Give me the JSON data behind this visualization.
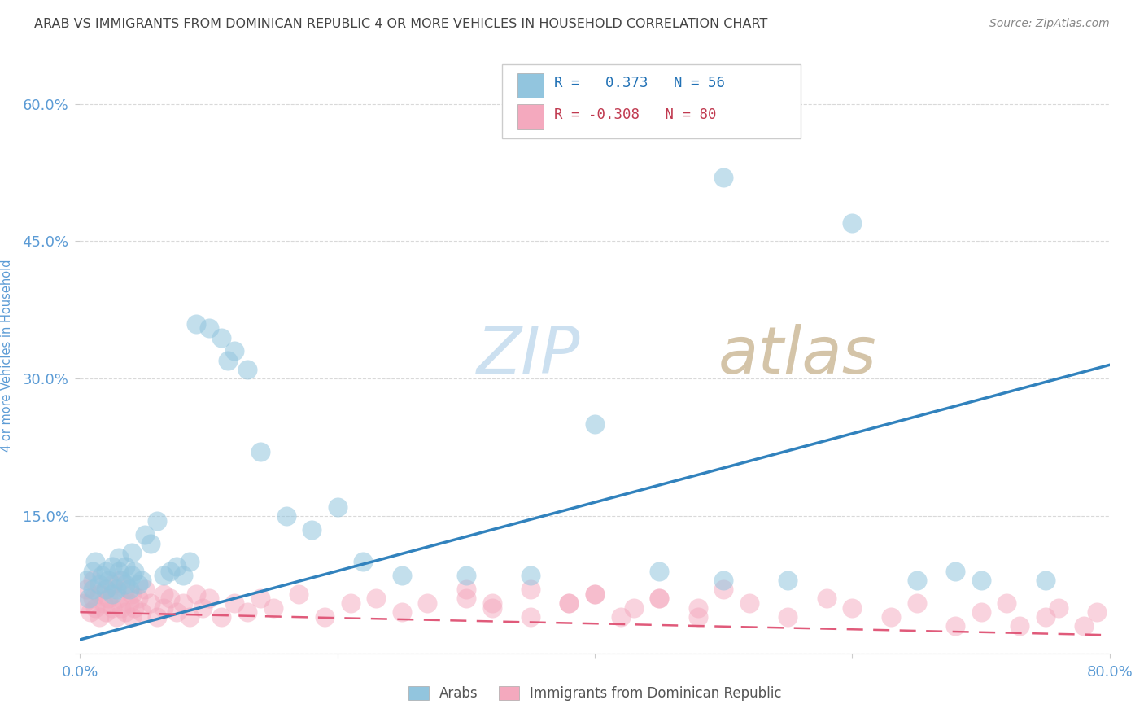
{
  "title": "ARAB VS IMMIGRANTS FROM DOMINICAN REPUBLIC 4 OR MORE VEHICLES IN HOUSEHOLD CORRELATION CHART",
  "source": "Source: ZipAtlas.com",
  "ylabel": "4 or more Vehicles in Household",
  "xlim": [
    0.0,
    0.8
  ],
  "ylim": [
    0.0,
    0.65
  ],
  "r_arab": 0.373,
  "n_arab": 56,
  "r_dom": -0.308,
  "n_dom": 80,
  "arab_color": "#92c5de",
  "dom_color": "#f4a9be",
  "arab_line_color": "#3182bd",
  "dom_line_color": "#e05a7a",
  "background_color": "#ffffff",
  "grid_color": "#d0d0d0",
  "axis_label_color": "#5b9bd5",
  "tick_color": "#5b9bd5",
  "watermark_zip_color": "#c8dff0",
  "watermark_atlas_color": "#d8c8b8",
  "arab_scatter_x": [
    0.005,
    0.007,
    0.01,
    0.01,
    0.012,
    0.015,
    0.017,
    0.02,
    0.02,
    0.022,
    0.025,
    0.025,
    0.028,
    0.03,
    0.03,
    0.032,
    0.035,
    0.035,
    0.038,
    0.04,
    0.04,
    0.042,
    0.045,
    0.048,
    0.05,
    0.055,
    0.06,
    0.065,
    0.07,
    0.075,
    0.08,
    0.085,
    0.09,
    0.1,
    0.11,
    0.115,
    0.12,
    0.13,
    0.14,
    0.16,
    0.18,
    0.2,
    0.22,
    0.25,
    0.3,
    0.35,
    0.4,
    0.45,
    0.5,
    0.5,
    0.55,
    0.6,
    0.65,
    0.68,
    0.7,
    0.75
  ],
  "arab_scatter_y": [
    0.08,
    0.06,
    0.09,
    0.07,
    0.1,
    0.075,
    0.085,
    0.07,
    0.09,
    0.08,
    0.065,
    0.095,
    0.07,
    0.09,
    0.105,
    0.08,
    0.075,
    0.095,
    0.07,
    0.085,
    0.11,
    0.09,
    0.075,
    0.08,
    0.13,
    0.12,
    0.145,
    0.085,
    0.09,
    0.095,
    0.085,
    0.1,
    0.36,
    0.355,
    0.345,
    0.32,
    0.33,
    0.31,
    0.22,
    0.15,
    0.135,
    0.16,
    0.1,
    0.085,
    0.085,
    0.085,
    0.25,
    0.09,
    0.52,
    0.08,
    0.08,
    0.47,
    0.08,
    0.09,
    0.08,
    0.08
  ],
  "dom_scatter_x": [
    0.003,
    0.005,
    0.008,
    0.01,
    0.01,
    0.012,
    0.015,
    0.015,
    0.018,
    0.02,
    0.02,
    0.022,
    0.025,
    0.025,
    0.028,
    0.03,
    0.03,
    0.032,
    0.035,
    0.035,
    0.038,
    0.04,
    0.04,
    0.042,
    0.045,
    0.048,
    0.05,
    0.055,
    0.06,
    0.065,
    0.065,
    0.07,
    0.075,
    0.08,
    0.085,
    0.09,
    0.095,
    0.1,
    0.11,
    0.12,
    0.13,
    0.14,
    0.15,
    0.17,
    0.19,
    0.21,
    0.23,
    0.25,
    0.27,
    0.3,
    0.32,
    0.35,
    0.38,
    0.4,
    0.42,
    0.45,
    0.48,
    0.5,
    0.52,
    0.55,
    0.58,
    0.6,
    0.63,
    0.65,
    0.68,
    0.7,
    0.72,
    0.73,
    0.75,
    0.76,
    0.78,
    0.79,
    0.3,
    0.32,
    0.35,
    0.38,
    0.4,
    0.43,
    0.45,
    0.48
  ],
  "dom_scatter_y": [
    0.055,
    0.07,
    0.045,
    0.06,
    0.08,
    0.05,
    0.065,
    0.04,
    0.055,
    0.045,
    0.07,
    0.06,
    0.05,
    0.075,
    0.04,
    0.06,
    0.08,
    0.05,
    0.045,
    0.07,
    0.055,
    0.04,
    0.065,
    0.05,
    0.06,
    0.045,
    0.07,
    0.055,
    0.04,
    0.065,
    0.05,
    0.06,
    0.045,
    0.055,
    0.04,
    0.065,
    0.05,
    0.06,
    0.04,
    0.055,
    0.045,
    0.06,
    0.05,
    0.065,
    0.04,
    0.055,
    0.06,
    0.045,
    0.055,
    0.06,
    0.05,
    0.04,
    0.055,
    0.065,
    0.04,
    0.06,
    0.05,
    0.07,
    0.055,
    0.04,
    0.06,
    0.05,
    0.04,
    0.055,
    0.03,
    0.045,
    0.055,
    0.03,
    0.04,
    0.05,
    0.03,
    0.045,
    0.07,
    0.055,
    0.07,
    0.055,
    0.065,
    0.05,
    0.06,
    0.04
  ]
}
